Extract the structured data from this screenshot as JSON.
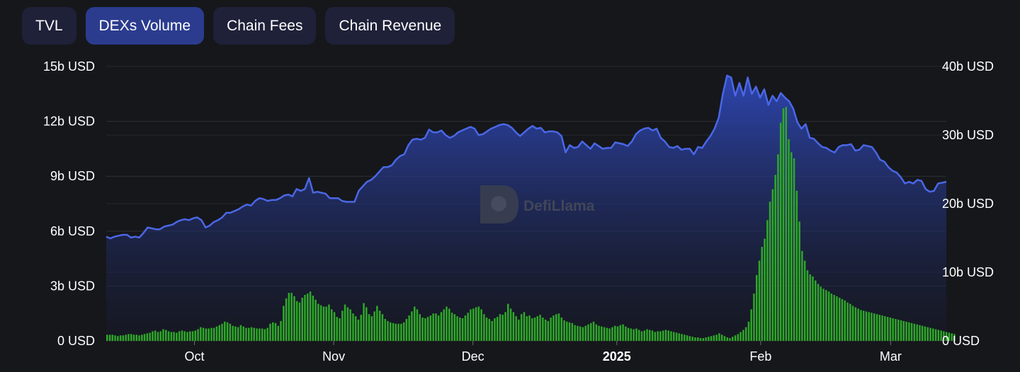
{
  "tabs": [
    {
      "label": "TVL",
      "active": false
    },
    {
      "label": "DEXs Volume",
      "active": true
    },
    {
      "label": "Chain Fees",
      "active": false
    },
    {
      "label": "Chain Revenue",
      "active": false
    }
  ],
  "watermark": "DefiLlama",
  "colors": {
    "background": "#16171b",
    "line": "#4a67e6",
    "bar": "#2fa82a",
    "tab": "#1f2139",
    "tab_active": "#2b3c8f"
  },
  "chart_data": {
    "type": "line+bar",
    "x_ticks": [
      {
        "label": "Oct",
        "day": 19,
        "bold": false
      },
      {
        "label": "Nov",
        "day": 49,
        "bold": false
      },
      {
        "label": "Dec",
        "day": 79,
        "bold": false
      },
      {
        "label": "2025",
        "day": 110,
        "bold": true
      },
      {
        "label": "Feb",
        "day": 141,
        "bold": false
      },
      {
        "label": "Mar",
        "day": 169,
        "bold": false
      }
    ],
    "x_range_days": [
      0,
      181
    ],
    "left_axis": {
      "ticks": [
        "0 USD",
        "3b USD",
        "6b USD",
        "9b USD",
        "12b USD",
        "15b USD"
      ],
      "values": [
        0,
        3,
        6,
        9,
        12,
        15
      ],
      "range": [
        0,
        15
      ],
      "unit": "billion USD"
    },
    "right_axis": {
      "ticks": [
        "0 USD",
        "10b USD",
        "20b USD",
        "30b USD",
        "40b USD"
      ],
      "values": [
        0,
        10,
        20,
        30,
        40
      ],
      "range": [
        0,
        40
      ],
      "unit": "billion USD"
    },
    "series": [
      {
        "type": "area-line",
        "axis": "left",
        "values": [
          5.7,
          5.6,
          5.7,
          5.75,
          5.8,
          5.8,
          5.65,
          5.7,
          5.65,
          5.9,
          6.2,
          6.15,
          6.1,
          6.1,
          6.25,
          6.3,
          6.35,
          6.5,
          6.6,
          6.65,
          6.6,
          6.7,
          6.75,
          6.6,
          6.2,
          6.3,
          6.5,
          6.6,
          6.75,
          7.0,
          7.0,
          7.1,
          7.2,
          7.35,
          7.45,
          7.4,
          7.65,
          7.8,
          7.75,
          7.65,
          7.7,
          7.7,
          7.8,
          7.95,
          8.0,
          7.9,
          8.3,
          8.2,
          8.3,
          8.9,
          8.1,
          8.15,
          8.1,
          8.05,
          7.8,
          7.8,
          7.8,
          7.65,
          7.6,
          7.6,
          7.6,
          8.2,
          8.45,
          8.7,
          8.8,
          9.0,
          9.25,
          9.5,
          9.5,
          9.6,
          9.9,
          10.1,
          10.2,
          10.7,
          11.0,
          11.05,
          11.0,
          11.1,
          11.55,
          11.4,
          11.4,
          11.5,
          11.25,
          11.1,
          11.2,
          11.4,
          11.5,
          11.6,
          11.7,
          11.6,
          11.25,
          11.3,
          11.45,
          11.6,
          11.7,
          11.8,
          11.85,
          11.8,
          11.65,
          11.4,
          11.2,
          11.4,
          11.6,
          11.75,
          11.6,
          11.65,
          11.4,
          11.45,
          11.45,
          11.4,
          11.2,
          10.3,
          10.7,
          10.55,
          10.6,
          10.9,
          10.7,
          10.5,
          10.8,
          10.65,
          10.5,
          10.55,
          10.55,
          10.85,
          10.8,
          10.75,
          10.65,
          10.9,
          11.3,
          11.5,
          11.6,
          11.65,
          11.5,
          11.6,
          11.1,
          10.9,
          10.6,
          10.55,
          10.65,
          10.45,
          10.5,
          10.5,
          10.2,
          10.6,
          10.55,
          10.9,
          11.2,
          11.6,
          12.2,
          13.5,
          14.5,
          14.4,
          13.4,
          14.1,
          13.4,
          14.4,
          13.5,
          13.9,
          13.3,
          13.75,
          12.9,
          13.4,
          13.1,
          13.55,
          13.3,
          13.1,
          12.7,
          11.95,
          11.6,
          11.85,
          11.1,
          11.05,
          10.8,
          10.6,
          10.55,
          10.4,
          10.3,
          10.6,
          10.7,
          10.7,
          10.75,
          10.4,
          10.45,
          10.7,
          10.65,
          10.6,
          10.3,
          9.9,
          9.8,
          9.5,
          9.3,
          9.2,
          8.95,
          8.6,
          8.7,
          8.6,
          8.8,
          8.75,
          8.3,
          8.15,
          8.2,
          8.6,
          8.65,
          8.7
        ]
      },
      {
        "type": "bar",
        "axis": "right",
        "values": [
          0.9,
          0.9,
          0.9,
          0.8,
          0.7,
          0.8,
          0.8,
          0.9,
          1.0,
          1.0,
          0.9,
          0.9,
          0.8,
          0.9,
          1.0,
          1.1,
          1.2,
          1.4,
          1.5,
          1.3,
          1.4,
          1.7,
          1.6,
          1.4,
          1.3,
          1.3,
          1.2,
          1.4,
          1.5,
          1.4,
          1.3,
          1.4,
          1.4,
          1.5,
          1.7,
          2.0,
          1.9,
          1.8,
          1.8,
          1.9,
          1.9,
          2.1,
          2.3,
          2.5,
          2.8,
          2.7,
          2.5,
          2.2,
          2.1,
          2.0,
          2.3,
          2.1,
          1.9,
          1.9,
          2.0,
          1.9,
          1.8,
          1.8,
          1.8,
          1.7,
          1.9,
          2.5,
          2.7,
          2.6,
          2.2,
          2.9,
          5.1,
          6.2,
          7.0,
          7.0,
          6.5,
          5.8,
          5.6,
          6.3,
          6.7,
          6.9,
          7.2,
          6.6,
          6.0,
          5.4,
          5.2,
          5.0,
          5.0,
          5.3,
          4.6,
          4.2,
          3.5,
          3.3,
          4.4,
          5.3,
          4.9,
          4.6,
          4.0,
          3.6,
          3.1,
          3.8,
          5.5,
          4.9,
          3.9,
          3.6,
          4.3,
          5.1,
          4.4,
          3.9,
          3.2,
          2.9,
          2.7,
          2.6,
          2.5,
          2.5,
          2.5,
          2.7,
          3.2,
          3.7,
          4.3,
          5.0,
          4.6,
          3.9,
          3.4,
          3.3,
          3.5,
          3.7,
          4.0,
          4.0,
          3.7,
          4.2,
          4.6,
          5.0,
          4.7,
          4.1,
          3.9,
          3.6,
          3.4,
          3.3,
          3.7,
          4.1,
          4.6,
          4.7,
          4.9,
          5.0,
          4.6,
          3.9,
          3.4,
          3.2,
          2.9,
          3.3,
          3.5,
          3.9,
          3.8,
          4.2,
          5.4,
          4.7,
          4.2,
          3.6,
          3.1,
          3.9,
          4.2,
          3.6,
          3.7,
          3.3,
          3.4,
          3.6,
          3.8,
          3.4,
          3.1,
          2.9,
          3.4,
          3.7,
          3.9,
          4.0,
          3.4,
          3.0,
          2.8,
          2.7,
          2.6,
          2.3,
          2.2,
          2.1,
          2.0,
          2.2,
          2.4,
          2.6,
          2.8,
          2.4,
          2.2,
          2.1,
          2.0,
          1.9,
          1.8,
          2.0,
          2.2,
          2.1,
          2.3,
          2.4,
          2.1,
          1.9,
          1.8,
          1.7,
          1.8,
          1.6,
          1.4,
          1.5,
          1.7,
          1.6,
          1.5,
          1.3,
          1.4,
          1.4,
          1.5,
          1.6,
          1.5,
          1.4,
          1.3,
          1.2,
          1.1,
          1.0,
          0.9,
          0.8,
          0.7,
          0.6,
          0.5,
          0.5,
          0.4,
          0.4,
          0.5,
          0.6,
          0.7,
          0.8,
          0.9,
          1.1,
          0.9,
          0.7,
          0.5,
          0.4,
          0.6,
          0.8,
          1.0,
          1.3,
          1.6,
          2.0,
          2.8,
          4.6,
          6.9,
          9.6,
          11.7,
          13.7,
          14.9,
          17.6,
          20.3,
          22.1,
          24.2,
          27.2,
          31.8,
          33.9,
          34.1,
          29.4,
          27.5,
          26.6,
          21.9,
          17.4,
          13.1,
          11.7,
          10.3,
          9.7,
          9.4,
          8.8,
          8.3,
          7.9,
          7.6,
          7.4,
          7.2,
          6.9,
          6.7,
          6.5,
          6.3,
          6.1,
          5.9,
          5.6,
          5.4,
          5.1,
          4.9,
          4.7,
          4.5,
          4.4,
          4.3,
          4.2,
          4.1,
          4.0,
          3.9,
          3.8,
          3.7,
          3.6,
          3.5,
          3.4,
          3.3,
          3.2,
          3.1,
          3.0,
          2.9,
          2.8,
          2.7,
          2.6,
          2.5,
          2.4,
          2.3,
          2.2,
          2.1,
          2.0,
          1.9,
          1.8,
          1.7,
          1.6,
          1.5,
          1.4,
          1.3,
          1.2,
          1.1,
          1.0
        ]
      }
    ],
    "grid": true,
    "title": "",
    "xlabel": "",
    "ylabel": ""
  }
}
